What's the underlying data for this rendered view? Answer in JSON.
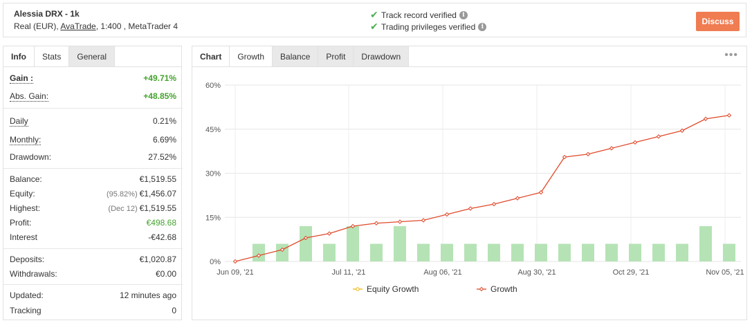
{
  "header": {
    "account_name": "Alessia DRX - 1k",
    "account_type": "Real (EUR), ",
    "broker": "AvaTrade",
    "account_rest": ", 1:400 , MetaTrader 4",
    "verified_track": "Track record verified",
    "verified_trading": "Trading privileges verified",
    "discuss_label": "Discuss"
  },
  "left_tabs": [
    "Info",
    "Stats",
    "General"
  ],
  "stats": {
    "gain": {
      "label": "Gain :",
      "value": "+49.71%"
    },
    "abs_gain": {
      "label": "Abs. Gain:",
      "value": "+48.85%"
    },
    "daily": {
      "label": "Daily",
      "value": "0.21%"
    },
    "monthly": {
      "label": "Monthly:",
      "value": "6.69%"
    },
    "drawdown": {
      "label": "Drawdown:",
      "value": "27.52%"
    },
    "balance": {
      "label": "Balance:",
      "value": "€1,519.55"
    },
    "equity": {
      "label": "Equity:",
      "note": "(95.82%)",
      "value": "€1,456.07"
    },
    "highest": {
      "label": "Highest:",
      "note": "(Dec 12)",
      "value": "€1,519.55"
    },
    "profit": {
      "label": "Profit:",
      "value": "€498.68"
    },
    "interest": {
      "label": "Interest",
      "value": "-€42.68"
    },
    "deposits": {
      "label": "Deposits:",
      "value": "€1,020.87"
    },
    "withdrawals": {
      "label": "Withdrawals:",
      "value": "€0.00"
    },
    "updated": {
      "label": "Updated:",
      "value": "12 minutes ago"
    },
    "tracking": {
      "label": "Tracking",
      "value": "0"
    }
  },
  "right_tabs": [
    "Chart",
    "Growth",
    "Balance",
    "Profit",
    "Drawdown"
  ],
  "colors": {
    "accent": "#f07c52",
    "growth": "#e0492a",
    "bar": "#b5e3b5",
    "equity": "#f0b400"
  },
  "chart_data": {
    "type": "line",
    "y_ticks": [
      "0%",
      "15%",
      "30%",
      "45%",
      "60%"
    ],
    "ylim": [
      0,
      60
    ],
    "x_tick_labels": [
      "Jun 09, '21",
      "Jul 11, '21",
      "Aug 06, '21",
      "Aug 30, '21",
      "Oct 29, '21",
      "Nov 05, '21"
    ],
    "legend": [
      "Equity Growth",
      "Growth"
    ],
    "legend_position": "bottom",
    "growth": [
      0,
      2,
      4,
      8,
      9.5,
      12,
      13,
      13.5,
      14,
      16,
      18,
      19.5,
      21.5,
      23.5,
      35.5,
      36.5,
      38.5,
      40.5,
      42.5,
      44.5,
      48.5,
      49.71
    ],
    "bars": [
      0,
      6,
      6,
      12,
      6,
      12,
      6,
      12,
      6,
      6,
      6,
      6,
      6,
      6,
      6,
      6,
      6,
      6,
      6,
      6,
      12,
      6
    ]
  }
}
